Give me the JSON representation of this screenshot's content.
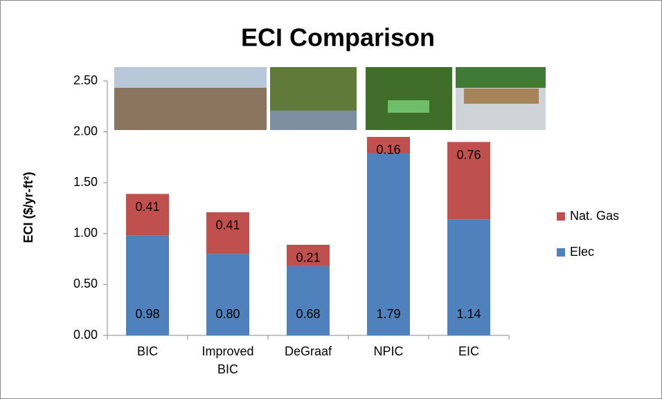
{
  "chart_data": {
    "type": "stacked_bar",
    "title": "ECI Comparison",
    "y_label": "ECI ($/yr-ft²)",
    "categories": [
      "BIC",
      "Improved BIC",
      "DeGraaf",
      "NPIC",
      "EIC"
    ],
    "series": [
      {
        "name": "Elec",
        "color": "#4f81bd",
        "values": [
          0.98,
          0.8,
          0.68,
          1.79,
          1.14
        ],
        "value_labels": [
          "0.98",
          "0.80",
          "0.68",
          "1.79",
          "1.14"
        ]
      },
      {
        "name": "Nat. Gas",
        "color": "#c0504d",
        "values": [
          0.41,
          0.41,
          0.21,
          0.16,
          0.76
        ],
        "value_labels": [
          "0.41",
          "0.41",
          "0.21",
          "0.16",
          "0.76"
        ]
      }
    ],
    "ylim": [
      0,
      2.5
    ],
    "yticks": [
      {
        "value": 0,
        "label": "0.00"
      },
      {
        "value": 0.5,
        "label": "0.50"
      },
      {
        "value": 1,
        "label": "1.00"
      },
      {
        "value": 1.5,
        "label": "1.50"
      },
      {
        "value": 2,
        "label": "2.00"
      },
      {
        "value": 2.5,
        "label": "2.50"
      }
    ],
    "grid": false,
    "legend": "right"
  }
}
